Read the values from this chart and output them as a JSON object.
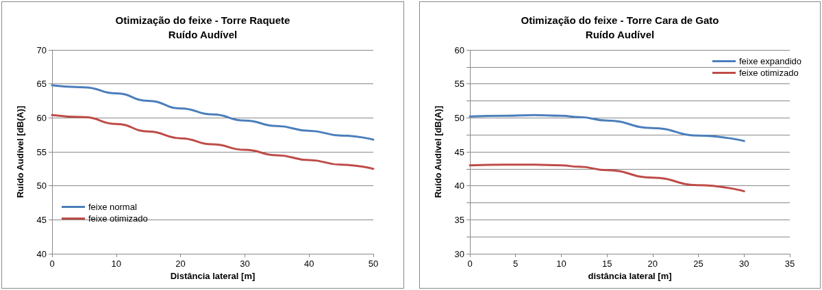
{
  "chart_data": [
    {
      "type": "line",
      "title": "Otimização do feixe - Torre Raquete",
      "subtitle": "Ruído Audível",
      "xlabel": "Distância lateral [m]",
      "ylabel": "Ruído Audível [dB(A)]",
      "x": [
        0,
        5,
        10,
        15,
        20,
        25,
        30,
        35,
        40,
        45,
        50
      ],
      "series": [
        {
          "name": "feixe normal",
          "color": "#4a7ebb",
          "values": [
            64.8,
            64.5,
            63.6,
            62.5,
            61.4,
            60.5,
            59.6,
            58.8,
            58.1,
            57.4,
            56.8
          ]
        },
        {
          "name": "feixe otimizado",
          "color": "#be4b48",
          "values": [
            60.4,
            60.1,
            59.1,
            58.0,
            57.0,
            56.1,
            55.3,
            54.5,
            53.8,
            53.1,
            52.5
          ]
        }
      ],
      "xlim": [
        0,
        50
      ],
      "xticks": [
        0,
        10,
        20,
        30,
        40,
        50
      ],
      "ylim": [
        40,
        70
      ],
      "yticks": [
        40,
        45,
        50,
        55,
        60,
        65,
        70
      ],
      "grid": "y",
      "legend": "bottom left",
      "marker": "none",
      "line_style": "solid"
    },
    {
      "type": "line",
      "title": "Otimização do feixe - Torre Cara de Gato",
      "subtitle": "Ruído Audível",
      "xlabel": "distância lateral [m]",
      "ylabel": "Ruído Audível [dB(A)]",
      "x": [
        0,
        4,
        7,
        10,
        12,
        15,
        20,
        25,
        30
      ],
      "series": [
        {
          "name": "feixe expandido",
          "color": "#4a7ebb",
          "values": [
            50.2,
            50.3,
            50.4,
            50.3,
            50.1,
            49.6,
            48.5,
            47.4,
            46.6
          ]
        },
        {
          "name": "feixe otimizado",
          "color": "#be4b48",
          "values": [
            43.0,
            43.1,
            43.1,
            43.0,
            42.8,
            42.3,
            41.2,
            40.1,
            39.2
          ]
        }
      ],
      "xlim": [
        0,
        35
      ],
      "xticks": [
        0,
        5,
        10,
        15,
        20,
        25,
        30,
        35
      ],
      "ylim": [
        30,
        60
      ],
      "yticks": [
        30,
        {
          "value": 32.5,
          "label": null
        },
        35,
        {
          "value": 37.5,
          "label": null
        },
        40,
        {
          "value": 42.5,
          "label": null
        },
        45,
        {
          "value": 47.5,
          "label": null
        },
        50,
        {
          "value": 52.5,
          "label": null
        },
        55,
        {
          "value": 57.5,
          "label": null
        },
        60
      ],
      "grid": "y",
      "legend": "top right",
      "marker": "none",
      "line_style": "solid"
    }
  ]
}
